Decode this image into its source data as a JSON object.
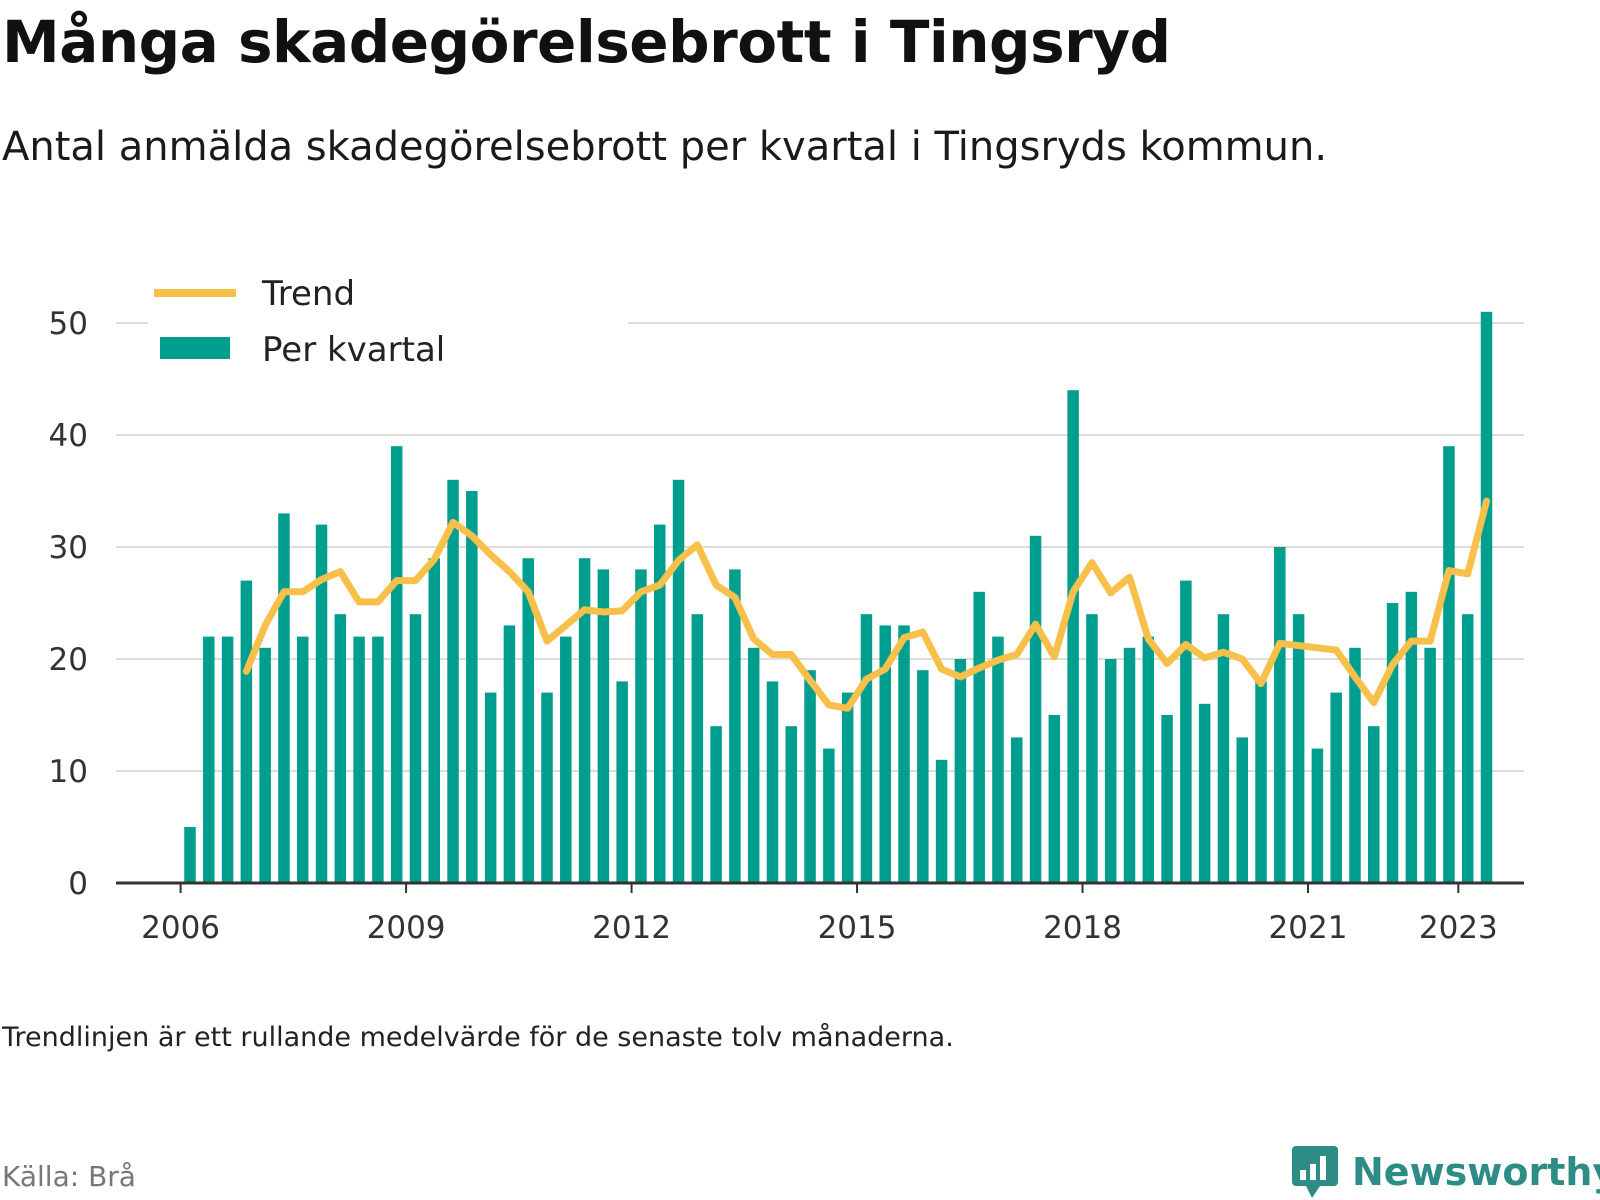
{
  "header": {
    "title": "Många skadegörelsebrott i Tingsryd",
    "subtitle": "Antal anmälda skadegörelsebrott per kvartal i Tingsryds kommun."
  },
  "footer": {
    "note": "Trendlinjen är ett rullande medelvärde för de senaste tolv månaderna.",
    "source": "Källa: Brå",
    "brand": "Newsworthy"
  },
  "colors": {
    "bars": "#009e8f",
    "trend": "#f7c04a",
    "grid": "#dddddd",
    "axis": "#333333",
    "brand": "#2d8c86"
  },
  "icons": {
    "brand_logo": "bar-chart-speech-bubble-icon"
  },
  "chart_data": {
    "type": "bar",
    "x_start": "2006 Q1",
    "x_tick_labels": [
      "2006",
      "2009",
      "2012",
      "2015",
      "2018",
      "2021",
      "2023"
    ],
    "x_tick_quarter_index": [
      0,
      12,
      24,
      36,
      48,
      60,
      68
    ],
    "ylim": [
      0,
      50
    ],
    "y_ticks": [
      0,
      10,
      20,
      30,
      40,
      50
    ],
    "grid": true,
    "legend_position": "top-left",
    "series": [
      {
        "name": "Per kvartal",
        "kind": "bar",
        "values": [
          5,
          22,
          22,
          27,
          21,
          33,
          22,
          32,
          24,
          22,
          22,
          39,
          24,
          29,
          36,
          35,
          17,
          23,
          29,
          17,
          22,
          29,
          28,
          18,
          28,
          32,
          36,
          24,
          14,
          28,
          21,
          18,
          14,
          19,
          12,
          17,
          24,
          23,
          23,
          19,
          11,
          20,
          26,
          22,
          13,
          31,
          15,
          44,
          24,
          20,
          21,
          22,
          15,
          27,
          16,
          24,
          13,
          18,
          30,
          24,
          12,
          17,
          21,
          14,
          25,
          26,
          21,
          39,
          24,
          51
        ]
      },
      {
        "name": "Trend",
        "kind": "line",
        "start_index": 3,
        "values": [
          18.9,
          23,
          26,
          26,
          27.1,
          27.8,
          25.1,
          25.1,
          27,
          27,
          28.9,
          32.2,
          31,
          29.3,
          27.8,
          26,
          21.6,
          23,
          24.4,
          24.2,
          24.3,
          26,
          26.6,
          28.8,
          30.2,
          26.6,
          25.5,
          21.8,
          20.4,
          20.4,
          18.1,
          15.9,
          15.6,
          18.2,
          19.1,
          21.9,
          22.4,
          19.1,
          18.4,
          19.2,
          19.9,
          20.4,
          23.1,
          20.2,
          26,
          28.6,
          25.9,
          27.3,
          21.8,
          19.6,
          21.3,
          20.1,
          20.6,
          20,
          17.8,
          21.4,
          21.2,
          21,
          20.8,
          18.4,
          16.1,
          19.5,
          21.6,
          21.6,
          27.9,
          27.6,
          34.1
        ]
      }
    ]
  }
}
